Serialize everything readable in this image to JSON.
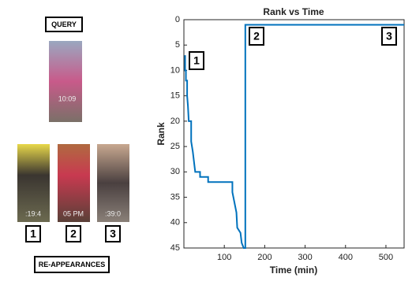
{
  "query_label": "QUERY",
  "query_image": {
    "timestamp": "10:09"
  },
  "reappearances_label": "RE-APPEARANCES",
  "reappearances": [
    {
      "number": "1",
      "timestamp": ":19:4"
    },
    {
      "number": "2",
      "timestamp": "05 PM"
    },
    {
      "number": "3",
      "timestamp": ":39:0"
    }
  ],
  "chart_data": {
    "type": "line",
    "title": "Rank vs Time",
    "x_label": "Time (min)",
    "y_label": "Rank",
    "xlim": [
      0,
      545
    ],
    "ylim": [
      0,
      45
    ],
    "y_reversed": true,
    "xticks": [
      100,
      200,
      300,
      400,
      500
    ],
    "yticks": [
      0,
      5,
      10,
      15,
      20,
      25,
      30,
      35,
      40,
      45
    ],
    "grid": false,
    "series": [
      {
        "color": "#0072bd",
        "x": [
          3,
          3,
          5,
          5,
          8,
          8,
          10,
          12,
          18,
          18,
          22,
          25,
          28,
          40,
          40,
          60,
          60,
          120,
          120,
          125,
          130,
          132,
          140,
          143,
          148,
          152,
          152,
          545
        ],
        "values": [
          7,
          10,
          10,
          12,
          12,
          15,
          17,
          20,
          20,
          24,
          26,
          28,
          30,
          30,
          31,
          31,
          32,
          32,
          34,
          36,
          38,
          41,
          42,
          44,
          45,
          45,
          1,
          1
        ]
      }
    ],
    "annotations": [
      "1",
      "2",
      "3"
    ]
  }
}
